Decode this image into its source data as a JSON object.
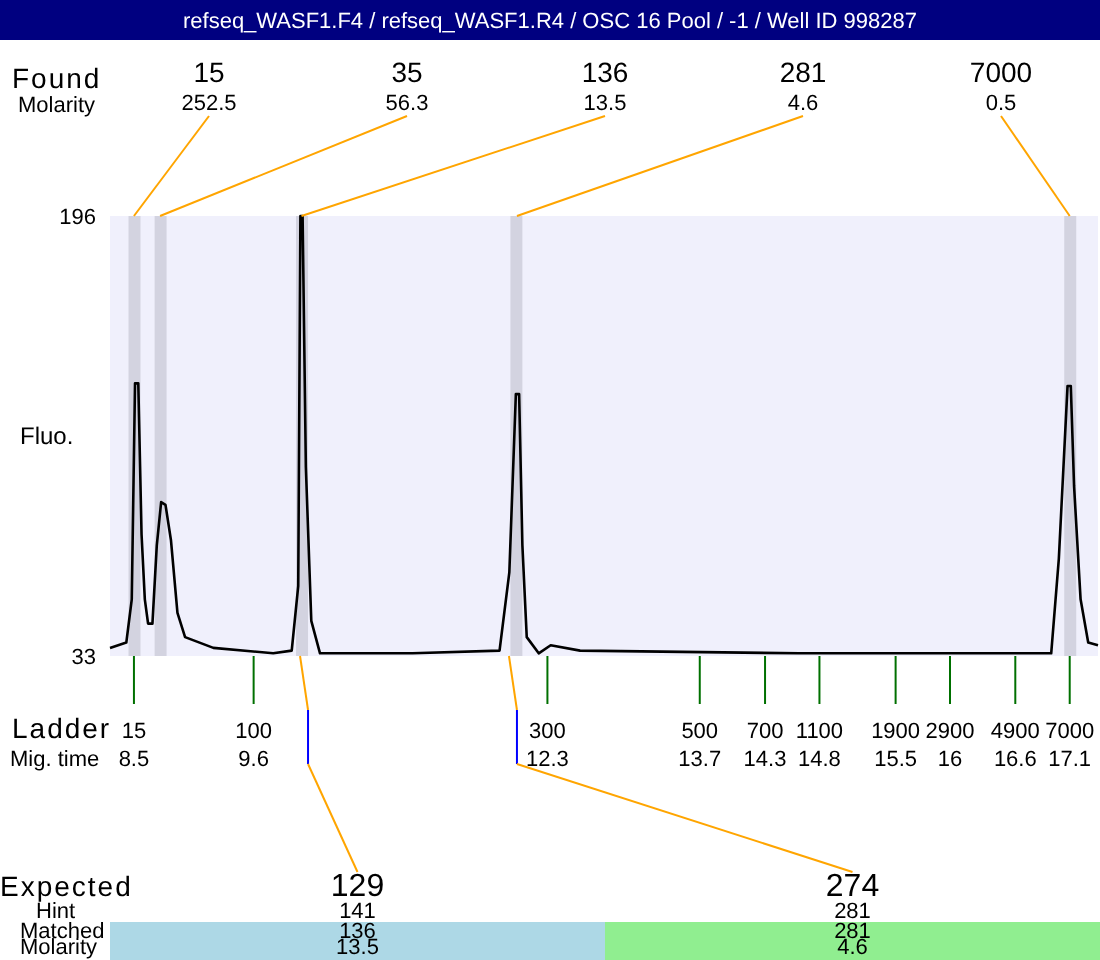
{
  "chart_data": {
    "type": "line",
    "title": "refseq_WASF1.F4 / refseq_WASF1.R4 / OSC 16 Pool / -1 / Well ID 998287",
    "xlabel": "Mig. time",
    "ylabel": "Fluo.",
    "x": [
      8.28,
      8.43,
      8.48,
      8.51,
      8.54,
      8.57,
      8.6,
      8.63,
      8.67,
      8.71,
      8.75,
      8.79,
      8.84,
      8.9,
      8.97,
      9.23,
      9.78,
      9.95,
      10.01,
      10.03,
      10.05,
      10.08,
      10.13,
      10.21,
      11.06,
      11.86,
      11.95,
      12.01,
      12.04,
      12.07,
      12.11,
      12.22,
      12.33,
      12.6,
      14.61,
      16.93,
      17.0,
      17.08,
      17.11,
      17.14,
      17.2,
      17.27,
      17.36
    ],
    "series": [
      {
        "color": "#000000",
        "values": [
          36,
          38,
          54,
          134,
          134,
          78,
          54,
          45,
          45,
          74,
          90,
          89,
          76,
          49,
          40,
          36,
          34,
          35,
          59,
          196,
          196,
          103,
          46,
          34,
          34,
          35,
          64,
          130,
          130,
          74,
          40,
          34,
          37,
          35,
          34,
          34,
          69,
          133,
          133,
          96,
          54,
          38,
          37
        ]
      }
    ],
    "xlim": [
      8.28,
      17.36
    ],
    "xticks": [
      8.5,
      9.6,
      12.3,
      13.7,
      14.3,
      14.8,
      15.5,
      16,
      16.6,
      17.1
    ],
    "ylim": [
      33,
      196
    ],
    "yticks": [
      33,
      196
    ],
    "grid": false,
    "line_style": "solid",
    "bands": [
      {
        "axis": "x",
        "from": 8.45,
        "to": 8.56,
        "color": "#d3d3e0"
      },
      {
        "axis": "x",
        "from": 8.69,
        "to": 8.8,
        "color": "#d3d3e0"
      },
      {
        "axis": "x",
        "from": 9.99,
        "to": 10.1,
        "color": "#d3d3e0"
      },
      {
        "axis": "x",
        "from": 11.96,
        "to": 12.07,
        "color": "#d3d3e0"
      },
      {
        "axis": "x",
        "from": 17.05,
        "to": 17.16,
        "color": "#d3d3e0"
      }
    ],
    "annotations": [
      "Found",
      "Molarity",
      "Ladder",
      "Expected",
      "Hint",
      "Matched",
      "Molarity",
      {
        "text": "15\n252.5",
        "x": 8.5,
        "y": 196
      },
      {
        "text": "35\n56.3",
        "x": 8.74,
        "y": 196
      },
      {
        "text": "136\n13.5",
        "x": 10.04,
        "y": 196
      },
      {
        "text": "281\n4.6",
        "x": 12.02,
        "y": 196
      },
      {
        "text": "7000\n0.5",
        "x": 17.1,
        "y": 196
      },
      {
        "text": "15",
        "x": 8.5,
        "y": 33
      },
      {
        "text": "100",
        "x": 9.6,
        "y": 33
      },
      {
        "text": "300",
        "x": 12.3,
        "y": 33
      },
      {
        "text": "500",
        "x": 13.7,
        "y": 33
      },
      {
        "text": "700",
        "x": 14.3,
        "y": 33
      },
      {
        "text": "1100",
        "x": 14.8,
        "y": 33
      },
      {
        "text": "1900",
        "x": 15.5,
        "y": 33
      },
      {
        "text": "2900",
        "x": 16,
        "y": 33
      },
      {
        "text": "4900",
        "x": 16.6,
        "y": 33
      },
      {
        "text": "7000",
        "x": 17.1,
        "y": 33
      },
      {
        "text": "129\n141\n136\n13.5",
        "x": 10.1
      },
      {
        "text": "274\n281\n281\n4.6",
        "x": 12.02
      }
    ]
  }
}
